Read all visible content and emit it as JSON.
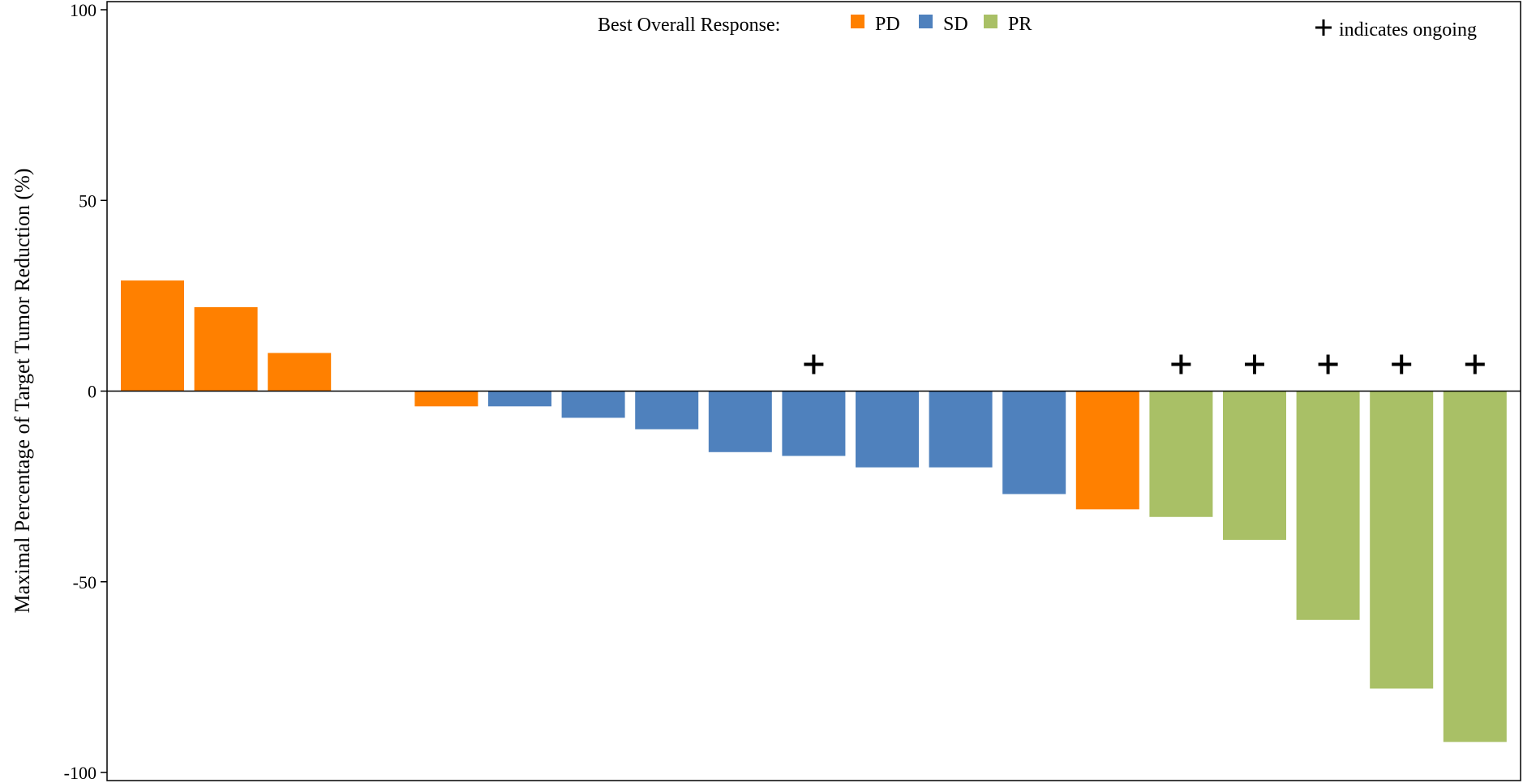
{
  "chart_data": {
    "type": "bar",
    "title": "",
    "xlabel": "",
    "ylabel": "Maximal Percentage of Target Tumor Reduction (%)",
    "ylim": [
      -102,
      102
    ],
    "yticks": [
      100,
      50,
      0,
      -50,
      -100
    ],
    "grid": false,
    "legend": {
      "position": "top-center",
      "title": "Best Overall Response:",
      "entries": [
        {
          "label": "PD",
          "color": "#ff8000"
        },
        {
          "label": "SD",
          "color": "#4f81bd"
        },
        {
          "label": "PR",
          "color": "#a9c066"
        }
      ]
    },
    "ongoing_note": {
      "symbol": "+",
      "text": "indicates ongoing",
      "position": "top-right"
    },
    "colors": {
      "PD": "#ff8000",
      "SD": "#4f81bd",
      "PR": "#a9c066"
    },
    "bars": [
      {
        "value": 29,
        "response": "PD",
        "ongoing": false
      },
      {
        "value": 22,
        "response": "PD",
        "ongoing": false
      },
      {
        "value": 10,
        "response": "PD",
        "ongoing": false
      },
      {
        "value": 0,
        "response": "PD",
        "ongoing": false
      },
      {
        "value": -4,
        "response": "PD",
        "ongoing": false
      },
      {
        "value": -4,
        "response": "SD",
        "ongoing": false
      },
      {
        "value": -7,
        "response": "SD",
        "ongoing": false
      },
      {
        "value": -10,
        "response": "SD",
        "ongoing": false
      },
      {
        "value": -16,
        "response": "SD",
        "ongoing": false
      },
      {
        "value": -17,
        "response": "SD",
        "ongoing": true
      },
      {
        "value": -20,
        "response": "SD",
        "ongoing": false
      },
      {
        "value": -20,
        "response": "SD",
        "ongoing": false
      },
      {
        "value": -27,
        "response": "SD",
        "ongoing": false
      },
      {
        "value": -31,
        "response": "PD",
        "ongoing": false
      },
      {
        "value": -33,
        "response": "PR",
        "ongoing": true
      },
      {
        "value": -39,
        "response": "PR",
        "ongoing": true
      },
      {
        "value": -60,
        "response": "PR",
        "ongoing": true
      },
      {
        "value": -78,
        "response": "PR",
        "ongoing": true
      },
      {
        "value": -92,
        "response": "PR",
        "ongoing": true
      }
    ]
  }
}
